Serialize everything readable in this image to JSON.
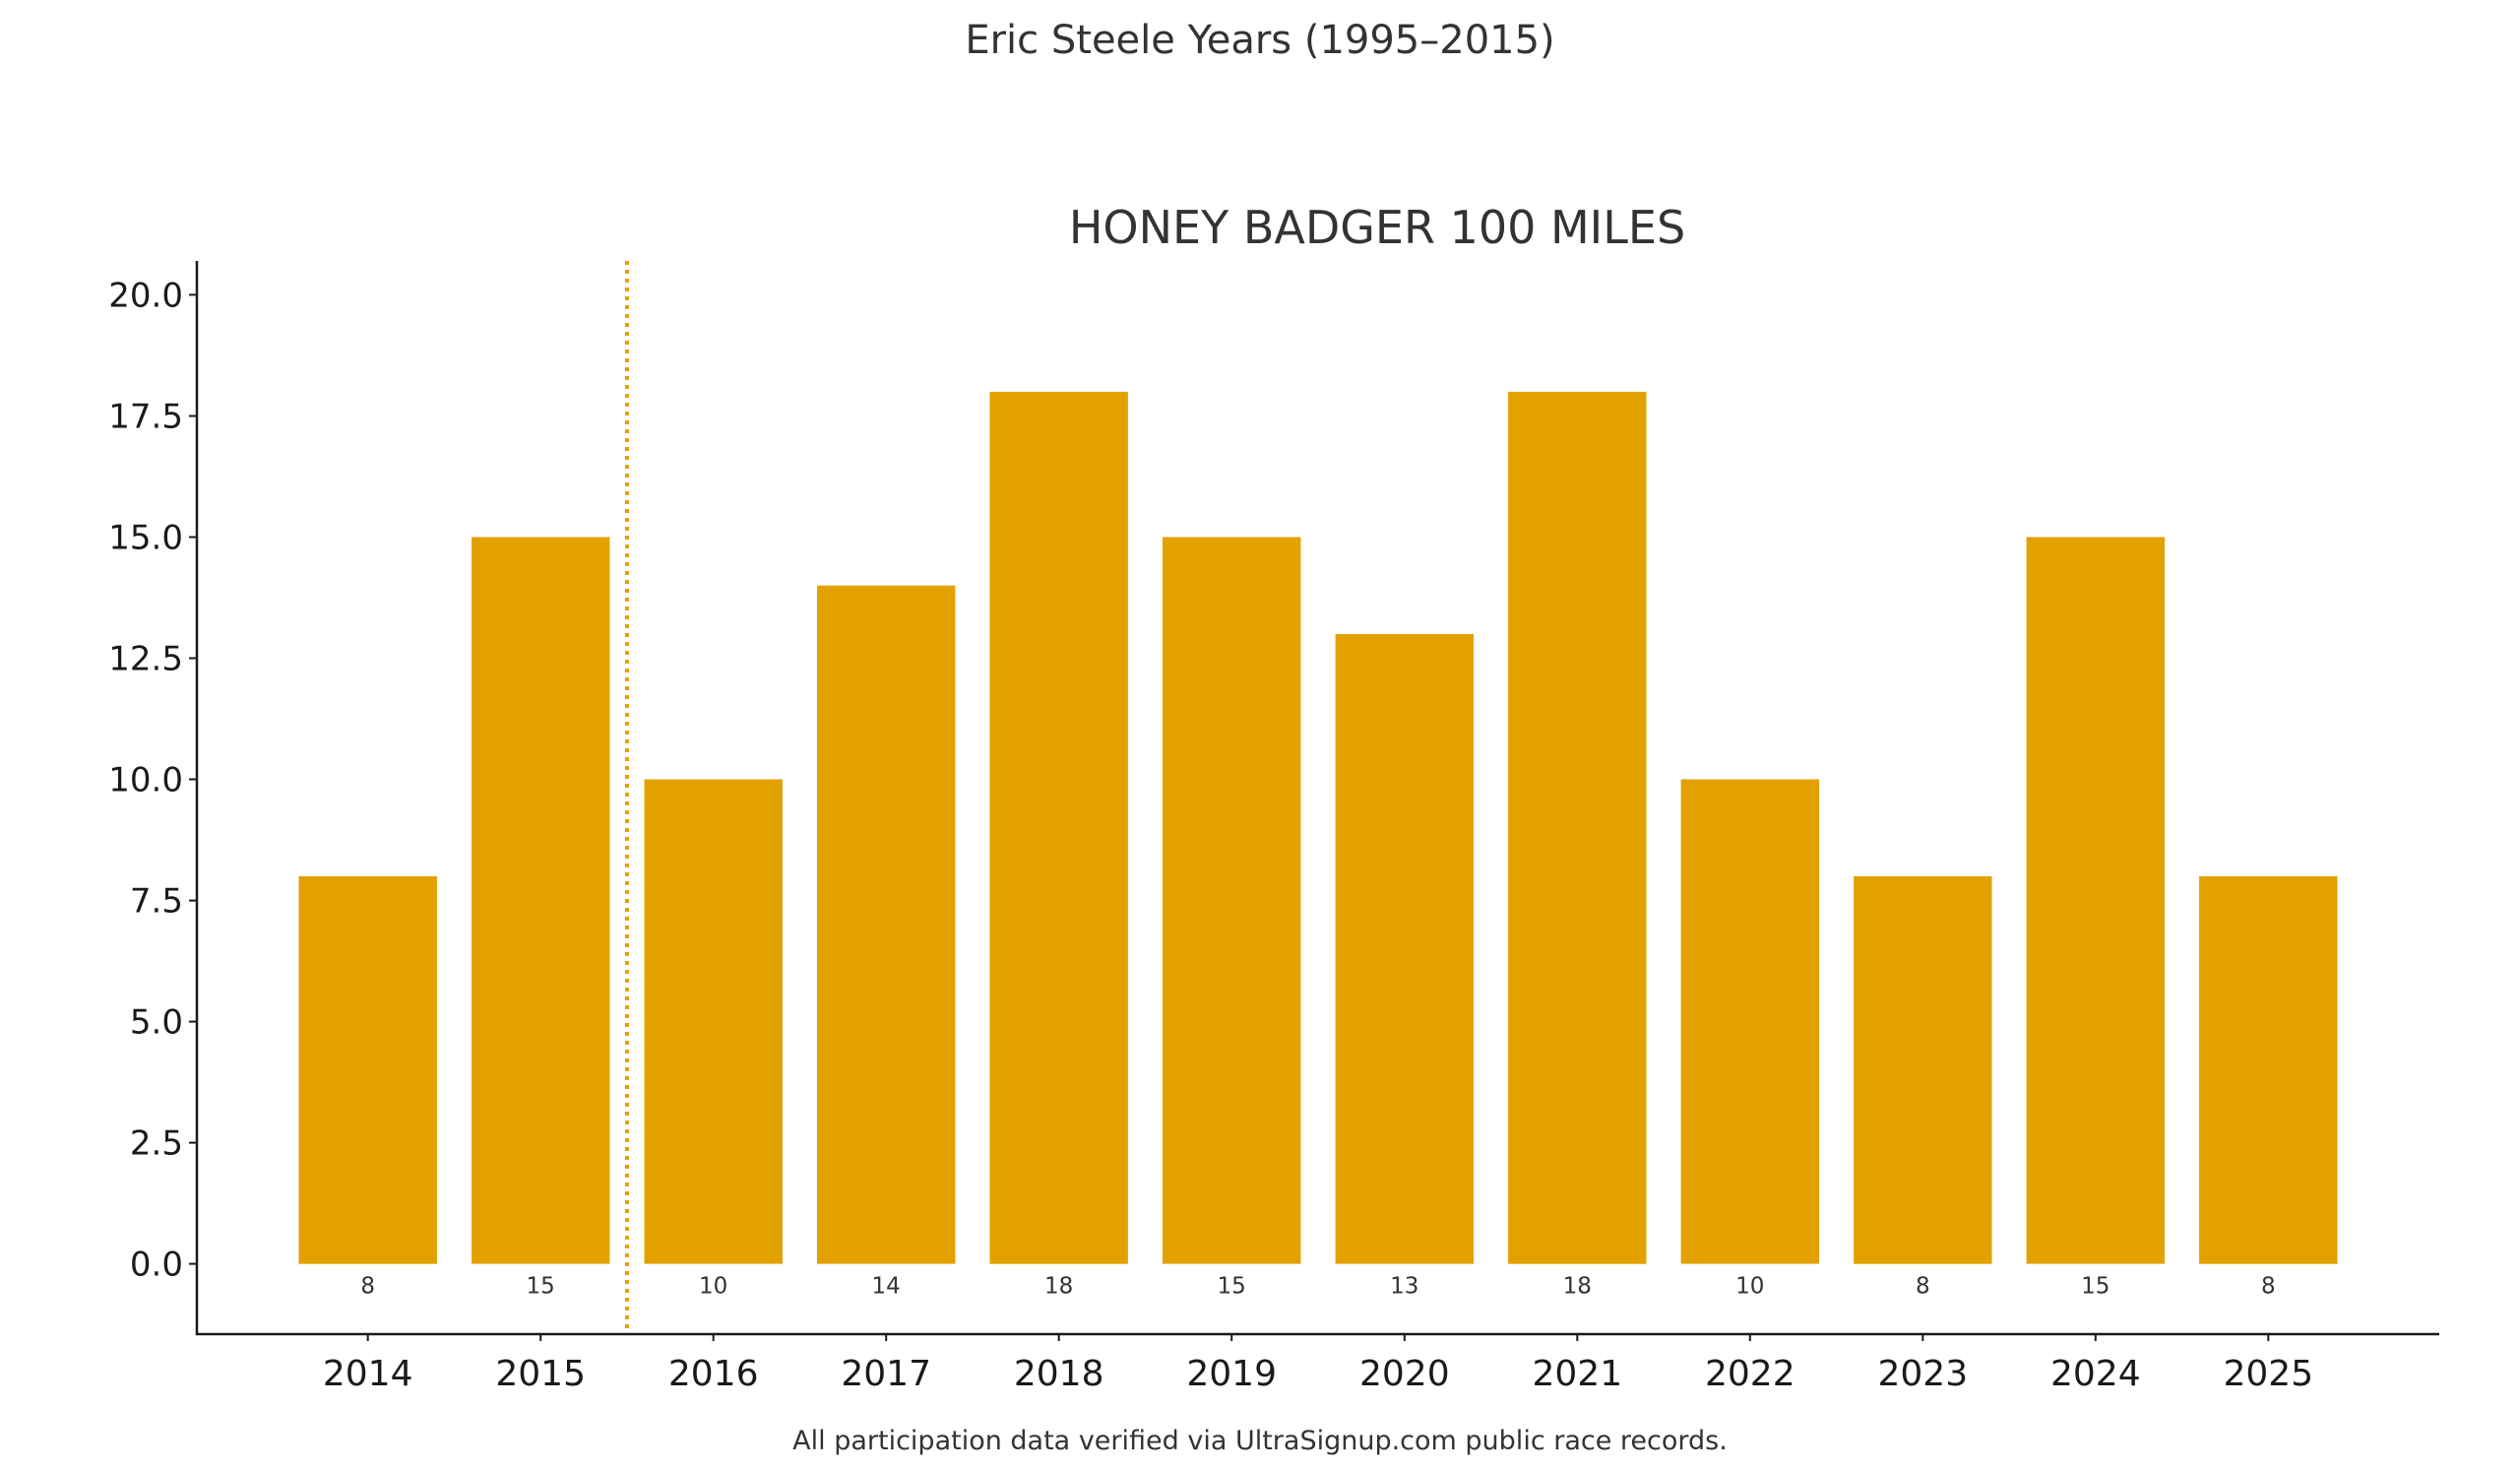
{
  "header": {
    "title": "Eric Steele Years (1995–2015)"
  },
  "footnote": "All participation data verified via UltraSignup.com public race records.",
  "chart_data": {
    "type": "bar",
    "title": "HONEY BADGER 100 MILES",
    "xlabel": "",
    "ylabel": "",
    "categories": [
      "2014",
      "2015",
      "2016",
      "2017",
      "2018",
      "2019",
      "2020",
      "2021",
      "2022",
      "2023",
      "2024",
      "2025"
    ],
    "values": [
      8,
      15,
      10,
      14,
      18,
      15,
      13,
      18,
      10,
      8,
      15,
      8
    ],
    "value_labels": [
      "8",
      "15",
      "10",
      "14",
      "18",
      "15",
      "13",
      "18",
      "10",
      "8",
      "15",
      "8"
    ],
    "ylim": [
      -1.45,
      20.7
    ],
    "yticks": [
      0,
      2.5,
      5,
      7.5,
      10,
      12.5,
      15,
      17.5,
      20
    ],
    "ytick_labels": [
      "0.0",
      "2.5",
      "5.0",
      "7.5",
      "10.0",
      "12.5",
      "15.0",
      "17.5",
      "20.0"
    ],
    "bar_color": "#E3A100",
    "reference_line": {
      "style": "dotted",
      "color": "#E3A100",
      "between": [
        "2015",
        "2016"
      ]
    },
    "grid": false,
    "legend": "none"
  }
}
